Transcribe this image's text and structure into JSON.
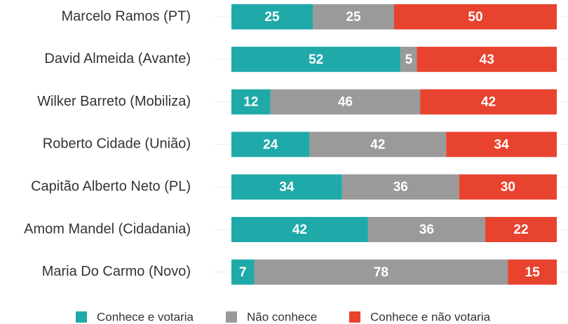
{
  "chart_data": {
    "type": "stacked_barh",
    "categories": [
      "Marcelo Ramos (PT)",
      "David Almeida (Avante)",
      "Wilker Barreto (Mobiliza)",
      "Roberto Cidade (União)",
      "Capitão Alberto Neto (PL)",
      "Amom Mandel (Cidadania)",
      "Maria Do Carmo (Novo)"
    ],
    "series": [
      {
        "name": "Conhece e votaria",
        "color": "#20a9a9",
        "values": [
          25,
          52,
          12,
          24,
          34,
          42,
          7
        ]
      },
      {
        "name": "Não conhece",
        "color": "#9a9a9a",
        "values": [
          25,
          5,
          46,
          42,
          36,
          36,
          78
        ]
      },
      {
        "name": "Conhece e não votaria",
        "color": "#e8432f",
        "values": [
          50,
          43,
          42,
          34,
          30,
          22,
          15
        ]
      }
    ],
    "xlim": [
      0,
      100
    ]
  }
}
